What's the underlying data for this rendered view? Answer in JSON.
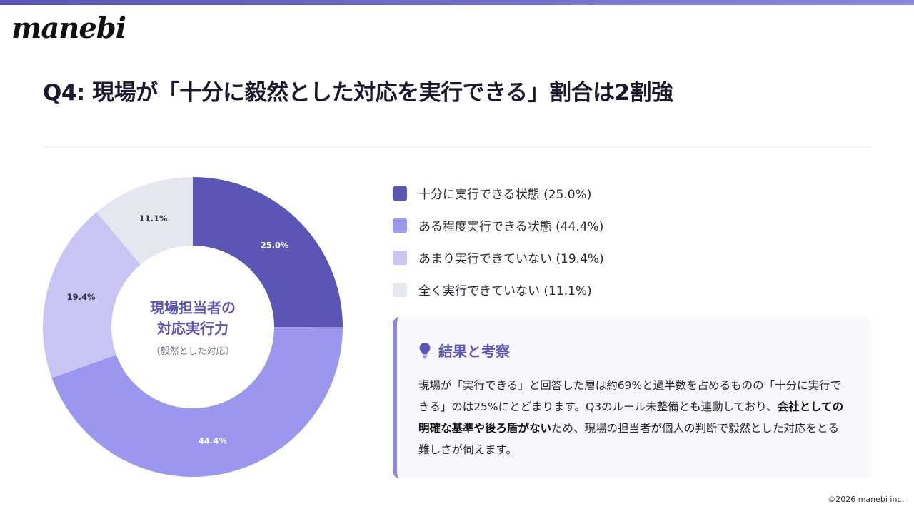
{
  "brand": {
    "logo_text": "manebi",
    "accent": "#5b55b5"
  },
  "title": "Q4: 現場が「十分に毅然とした対応を実行できる」割合は2割強",
  "chart_data": {
    "type": "donut",
    "center_title_line1": "現場担当者の",
    "center_title_line2": "対応実行力",
    "center_subtitle": "（毅然とした対応）",
    "categories": [
      "十分に実行できる状態",
      "ある程度実行できる状態",
      "あまり実行できていない",
      "全く実行できていない"
    ],
    "values": [
      25.0,
      44.4,
      19.4,
      11.1
    ],
    "data_labels": [
      "25.0%",
      "44.4%",
      "19.4%",
      "11.1%"
    ],
    "colors": [
      "#5b55b5",
      "#9c97ee",
      "#c8c5f4",
      "#e4e7ef"
    ],
    "legend_position": "right"
  },
  "legend": [
    "十分に実行できる状態 (25.0%)",
    "ある程度実行できる状態 (44.4%)",
    "あまり実行できていない (19.4%)",
    "全く実行できていない (11.1%)"
  ],
  "insight": {
    "icon": "lightbulb-icon",
    "title": "結果と考察",
    "text_before": "現場が「実行できる」と回答した層は約69%と過半数を占めるものの「十分に実行できる」のは25%にとどまります。Q3のルール未整備とも連動しており、",
    "text_bold": "会社としての明確な基準や後ろ盾がない",
    "text_after": "ため、現場の担当者が個人の判断で毅然とした対応をとる難しさが伺えます。"
  },
  "copyright": "©2026 manebi inc."
}
